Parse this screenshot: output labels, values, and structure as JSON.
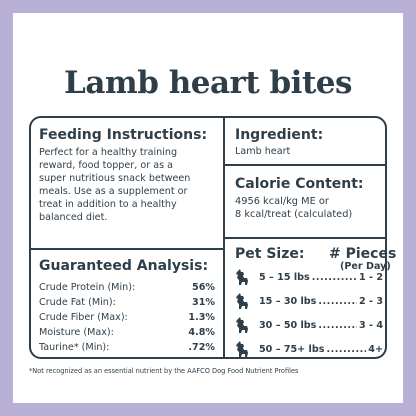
{
  "title": "Lamb heart bites",
  "feeding": {
    "heading": "Feeding Instructions:",
    "lines": [
      "Perfect for a healthy training",
      "reward, food topper, or as a",
      "super nutritious snack between",
      "meals. Use as a supplement or",
      "treat in addition to a healthy",
      "balanced diet."
    ]
  },
  "analysis": {
    "heading": "Guaranteed Analysis:",
    "rows": [
      {
        "label": "Crude Protein (Min):",
        "value": "56%"
      },
      {
        "label": "Crude Fat (Min):",
        "value": "31%"
      },
      {
        "label": "Crude Fiber (Max):",
        "value": "1.3%"
      },
      {
        "label": "Moisture (Max):",
        "value": "4.8%"
      },
      {
        "label": "Taurine* (Min):",
        "value": ".72%"
      }
    ]
  },
  "ingredient": {
    "heading": "Ingredient:",
    "text": "Lamb heart"
  },
  "calorie": {
    "heading": "Calorie Content:",
    "line1": "4956 kcal/kg ME or",
    "line2": "8 kcal/treat (calculated)"
  },
  "pets": {
    "size_heading": "Pet Size:",
    "pieces_heading": "# Pieces",
    "per_day": "(Per Day)",
    "rows": [
      {
        "range": "5 – 15 lbs",
        "dots": "..............",
        "count": "1 - 2"
      },
      {
        "range": "15 – 30 lbs",
        "dots": "............",
        "count": "2 - 3"
      },
      {
        "range": "30 – 50 lbs",
        "dots": "...........",
        "count": "3 - 4"
      },
      {
        "range": "50 – 75+ lbs",
        "dots": "..........",
        "count": "4+"
      }
    ]
  },
  "footnote": "*Not recognized as an essential nutrient by the AAFCO Dog Food Nutrient Profiles",
  "colors": {
    "background": "#b8b0d6",
    "text": "#2f3f4a",
    "card": "#ffffff"
  },
  "icons": [
    "dog-icon"
  ]
}
